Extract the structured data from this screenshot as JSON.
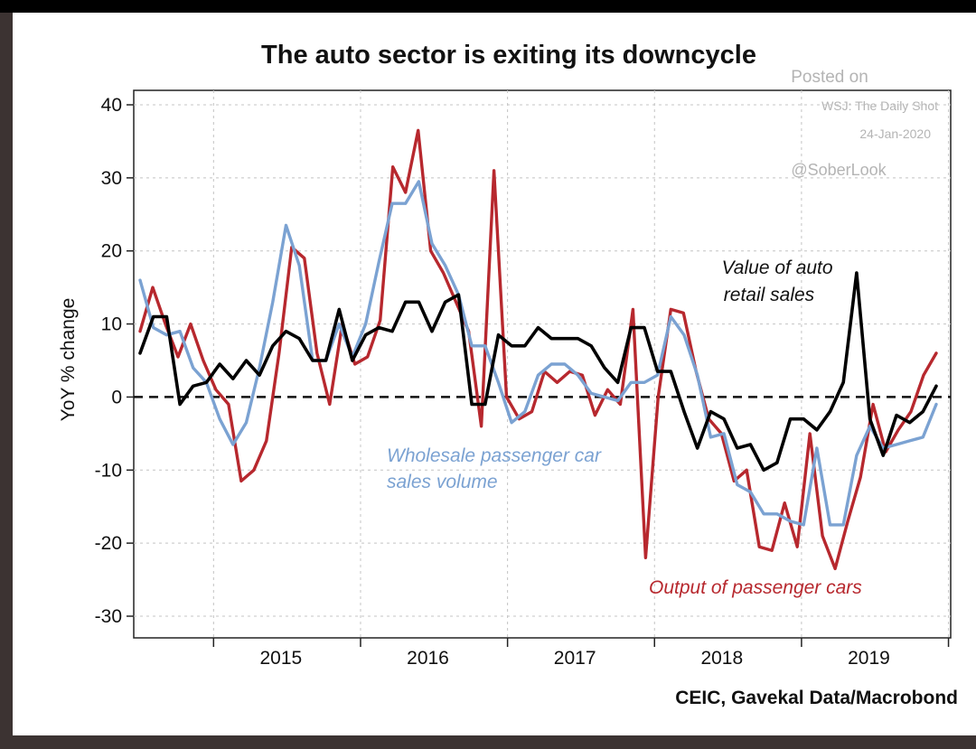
{
  "chart_data": {
    "type": "line",
    "title": "The auto sector is exiting its downcycle",
    "ylabel": "YoY % change",
    "xlabel": "",
    "ylim": [
      -30,
      40
    ],
    "yticks": [
      -30,
      -20,
      -10,
      0,
      10,
      20,
      30,
      40
    ],
    "xticks": [
      "2015",
      "2016",
      "2017",
      "2018",
      "2019"
    ],
    "grid": true,
    "zero_line": "dashed",
    "x_start": "2014-07",
    "x_end": "2019-12",
    "watermark": {
      "posted": "Posted on",
      "outlet": "WSJ: The Daily Shot",
      "date": "24-Jan-2020",
      "handle": "@SoberLook"
    },
    "source": "CEIC, Gavekal Data/Macrobond",
    "series": [
      {
        "name": "Output of passenger cars",
        "label_lines": [
          "Output of passenger cars"
        ],
        "color": "#b7282e",
        "values": [
          9,
          15,
          10,
          5.5,
          10,
          5,
          1,
          -1,
          -11.5,
          -10,
          -6,
          6,
          20.5,
          19,
          6,
          -1,
          10,
          4.5,
          5.5,
          10.5,
          31.5,
          28,
          36.5,
          20,
          17,
          13,
          9,
          -4,
          31,
          0,
          -3,
          -2,
          3.5,
          2,
          3.5,
          3,
          -2.5,
          1,
          -1,
          12,
          -22,
          0,
          12,
          11.5,
          3.5,
          -3,
          -5,
          -11.5,
          -10,
          -20.5,
          -21,
          -14.5,
          -20.5,
          -5,
          -19,
          -23.5,
          -17,
          -11,
          -1,
          -7.5,
          -4.5,
          -2,
          3,
          6
        ]
      },
      {
        "name": "Wholesale passenger car sales volume",
        "label_lines": [
          "Wholesale passenger car",
          "sales volume"
        ],
        "color": "#7ba2d2",
        "values": [
          16,
          9.5,
          8.5,
          9,
          4,
          2,
          -3,
          -6.5,
          -3.5,
          4,
          13,
          23.5,
          18,
          5,
          5,
          10,
          5.5,
          10,
          18.5,
          26.5,
          26.5,
          29.5,
          21,
          18,
          14,
          7,
          7,
          2,
          -3.5,
          -2,
          3,
          4.5,
          4.5,
          3,
          0.5,
          0,
          -0.5,
          2,
          2,
          3,
          11,
          8.5,
          3,
          -5.5,
          -5,
          -12,
          -13,
          -16,
          -16,
          -17,
          -17.5,
          -7,
          -17.5,
          -17.5,
          -8,
          -4,
          -7,
          -6.5,
          -6,
          -5.5,
          -1
        ]
      },
      {
        "name": "Value of auto retail sales",
        "label_lines": [
          "Value of auto",
          "retail sales"
        ],
        "color": "#000000",
        "values": [
          6,
          11,
          11,
          -1,
          1.5,
          2,
          4.5,
          2.5,
          5,
          3,
          7,
          9,
          8,
          5,
          5,
          12,
          5,
          8.5,
          9.5,
          9,
          13,
          13,
          9,
          13,
          14,
          -1,
          -1,
          8.5,
          7,
          7,
          9.5,
          8,
          8,
          8,
          7,
          4,
          2,
          9.5,
          9.5,
          3.5,
          3.5,
          -2,
          -7,
          -2,
          -3,
          -7,
          -6.5,
          -10,
          -9,
          -3,
          -3,
          -4.5,
          -2,
          2,
          17,
          -3,
          -8,
          -2.5,
          -3.5,
          -2,
          1.5
        ]
      }
    ]
  }
}
